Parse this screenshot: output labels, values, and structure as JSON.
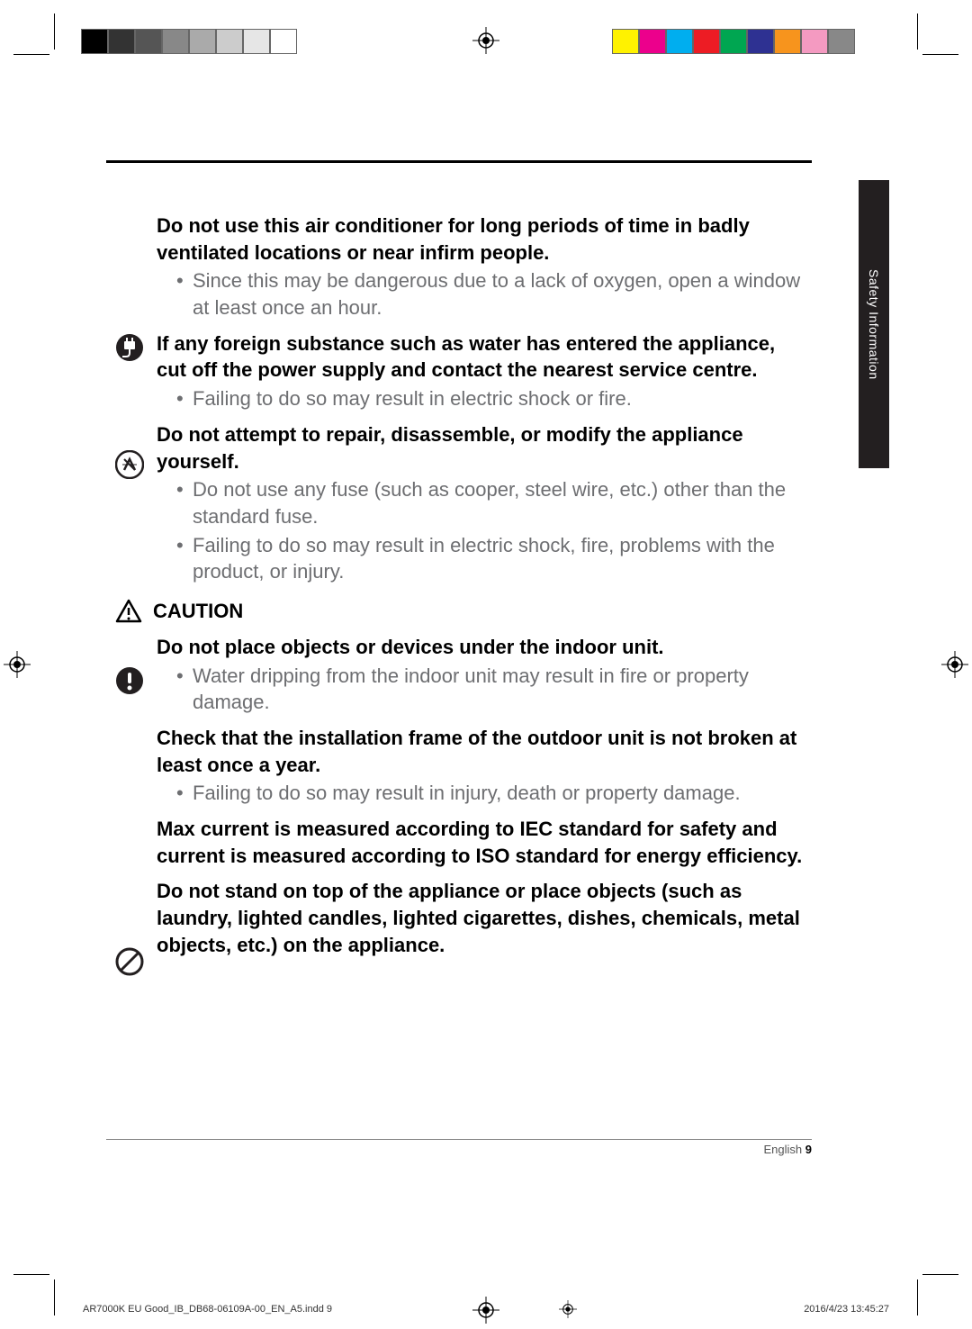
{
  "crop_marks": {
    "color": "#000000"
  },
  "color_bars": {
    "left": [
      "#000000",
      "#333333",
      "#555555",
      "#888888",
      "#aaaaaa",
      "#cccccc",
      "#e6e6e6",
      "#ffffff"
    ],
    "right": [
      "#fff200",
      "#ec008c",
      "#00aeef",
      "#ed1c24",
      "#00a651",
      "#2e3192",
      "#f7941d",
      "#f49ac1",
      "#888888"
    ]
  },
  "side_tab": {
    "label": "Safety Information",
    "bg": "#231f20",
    "fg": "#ffffff"
  },
  "sections": [
    {
      "icon": null,
      "heading": "Do not use this air conditioner for long periods of time in badly ventilated locations or near infirm people.",
      "bullets": [
        "Since this may be dangerous due to a lack of oxygen, open a window at least once an hour."
      ]
    },
    {
      "icon": "plug-icon",
      "heading": "If any foreign substance such as water has entered the appliance, cut off the power supply and contact the nearest service centre.",
      "bullets": [
        "Failing to do so may result in electric shock or fire."
      ]
    },
    {
      "icon": "disassemble-icon",
      "heading": "Do not attempt to repair, disassemble, or modify the appliance yourself.",
      "bullets": [
        "Do not use any fuse (such as cooper, steel wire, etc.) other than the standard fuse.",
        "Failing to do so may result in electric shock, fire, problems with the product, or injury."
      ]
    }
  ],
  "caution_label": "CAUTION",
  "caution_sections": [
    {
      "icon": "exclamation-icon",
      "heading": "Do not place objects or devices under the indoor unit.",
      "bullets": [
        "Water dripping from the indoor unit may result in fire or property damage."
      ]
    },
    {
      "icon": null,
      "heading": "Check that the installation frame of the outdoor unit is not broken at least once a year.",
      "bullets": [
        "Failing to do so may result in injury, death or property damage."
      ]
    },
    {
      "icon": null,
      "heading": "Max current is measured according to IEC standard for safety and current is measured according to ISO standard for energy efficiency.",
      "bullets": []
    },
    {
      "icon": "prohibit-icon",
      "heading": "Do not stand on top of the appliance or place objects (such as laundry, lighted candles, lighted cigarettes, dishes, chemicals, metal objects, etc.) on the appliance.",
      "bullets": []
    }
  ],
  "footer": {
    "lang": "English",
    "page": "9"
  },
  "print_footer": {
    "file": "AR7000K EU Good_IB_DB68-06109A-00_EN_A5.indd   9",
    "timestamp": "2016/4/23   13:45:27"
  },
  "colors": {
    "text_body": "#6d6e71",
    "text_heading": "#000000",
    "rule": "#000000"
  }
}
